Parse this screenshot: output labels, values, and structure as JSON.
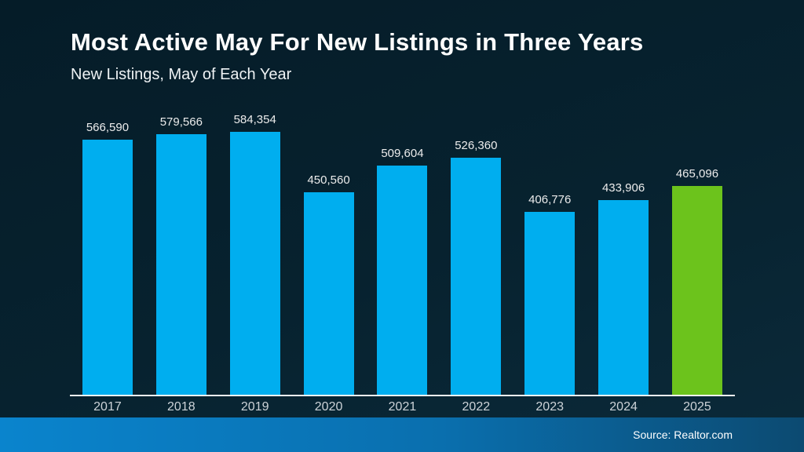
{
  "page": {
    "title": "Most Active May For New Listings in Three Years",
    "subtitle": "New Listings, May of Each Year",
    "source_text": "Source: Realtor.com"
  },
  "colors": {
    "background_top": "#051c28",
    "background_bottom": "#0b2a3a",
    "bar_default": "#00AEEF",
    "bar_highlight": "#6CC31C",
    "baseline": "#f2f2f2",
    "footer_gradient_left": "#0a84cd",
    "footer_gradient_right": "#0c4a71",
    "value_label": "#ececec",
    "axis_label": "#cdd3d8"
  },
  "chart_data": {
    "type": "bar",
    "title": "Most Active May For New Listings in Three Years",
    "subtitle": "New Listings, May of Each Year",
    "categories": [
      "2017",
      "2018",
      "2019",
      "2020",
      "2021",
      "2022",
      "2023",
      "2024",
      "2025"
    ],
    "values": [
      566590,
      579566,
      584354,
      450560,
      509604,
      526360,
      406776,
      433906,
      465096
    ],
    "value_labels": [
      "566,590",
      "579,566",
      "584,354",
      "450,560",
      "509,604",
      "526,360",
      "406,776",
      "433,906",
      "465,096"
    ],
    "highlight_index": 8,
    "xlabel": "",
    "ylabel": "",
    "ylim": [
      0,
      584354
    ],
    "grid": false,
    "legend": false,
    "annotation": "2025 bar highlighted green; all other bars blue; data labels shown above each bar"
  }
}
